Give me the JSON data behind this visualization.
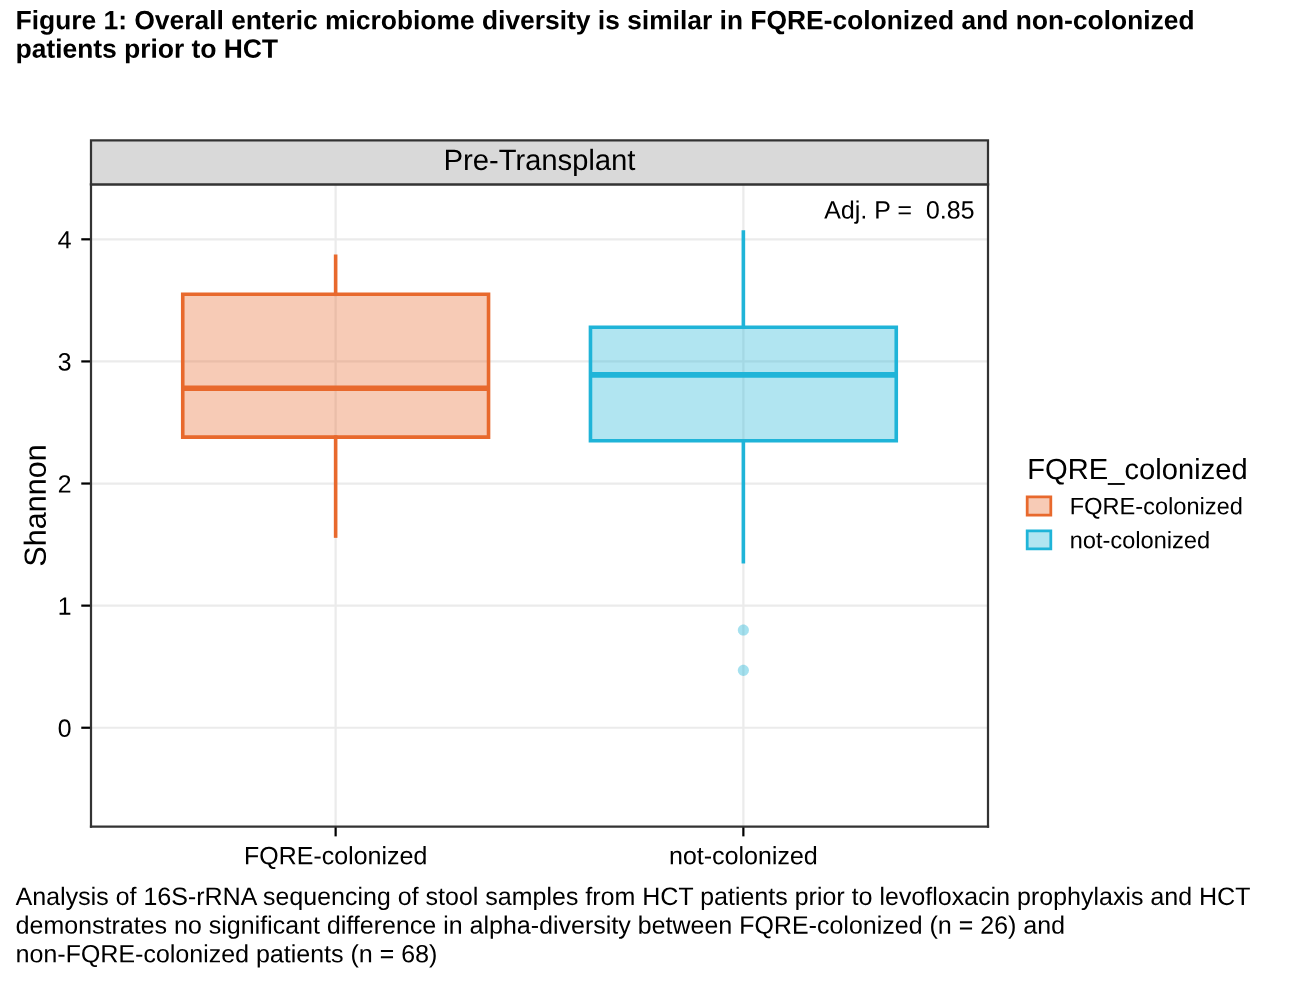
{
  "chart_data": {
    "type": "box",
    "title": "Figure 1: Overall enteric microbiome diversity is similar in FQRE-colonized and non-colonized patients prior to HCT",
    "subtitle": "Pre-Transplant",
    "ylabel": "Shannon",
    "legend_title": "FQRE_colonized",
    "categories": [
      "FQRE-colonized",
      "not-colonized"
    ],
    "series": [
      {
        "name": "FQRE-colonized",
        "color": "#e8692d",
        "boxes": [
          {
            "low": 1.57,
            "q1": 2.38,
            "median": 2.78,
            "q3": 3.55,
            "high": 3.86
          },
          null
        ]
      },
      {
        "name": "not-colonized",
        "color": "#1fb4d8",
        "boxes": [
          null,
          {
            "low": 1.36,
            "q1": 2.35,
            "median": 2.89,
            "q3": 3.28,
            "high": 4.06,
            "outliers": [
              0.8,
              0.47
            ]
          }
        ]
      }
    ],
    "ylim": [
      -0.81,
      4.45
    ],
    "yticks": [
      0,
      1,
      2,
      3,
      4
    ],
    "grid": true,
    "legend": "right",
    "annotations": [
      "Adj. P =  0.85",
      "Analysis of 16S-rRNA sequencing of stool samples from HCT patients prior to levofloxacin prophylaxis and HCT demonstrates no significant difference in alpha-diversity between FQRE-colonized (n = 26) and non-FQRE-colonized patients (n = 68)"
    ]
  }
}
